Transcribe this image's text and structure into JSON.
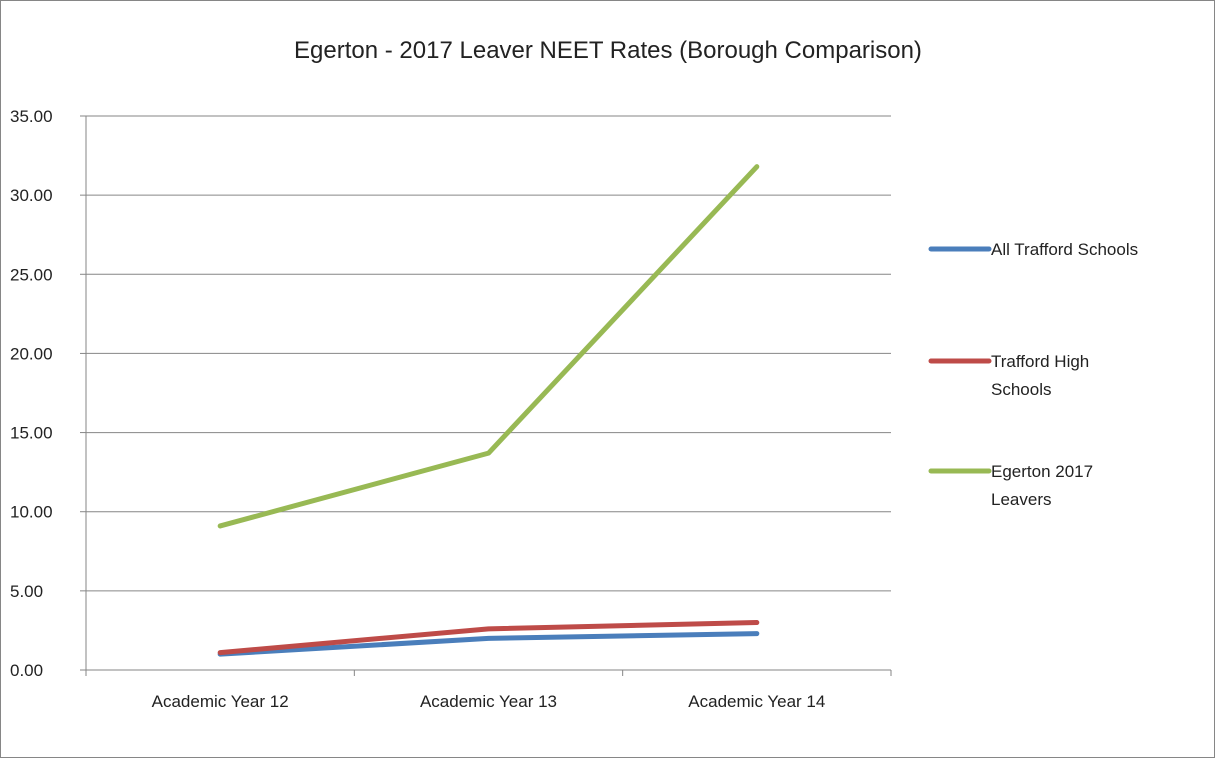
{
  "chart_data": {
    "type": "line",
    "title": "Egerton - 2017 Leaver NEET Rates (Borough Comparison)",
    "xlabel": "",
    "ylabel": "",
    "categories": [
      "Academic Year 12",
      "Academic Year 13",
      "Academic Year 14"
    ],
    "ylim": [
      0,
      35
    ],
    "yticks": [
      "0.00",
      "5.00",
      "10.00",
      "15.00",
      "20.00",
      "25.00",
      "30.00",
      "35.00"
    ],
    "grid": true,
    "legend_position": "right",
    "series": [
      {
        "name": "All Trafford Schools",
        "color": "#4a7ebb",
        "values": [
          1.0,
          2.0,
          2.3
        ]
      },
      {
        "name": "Trafford High Schools",
        "color": "#be4b48",
        "values": [
          1.1,
          2.6,
          3.0
        ]
      },
      {
        "name": "Egerton 2017 Leavers",
        "color": "#98b954",
        "values": [
          9.1,
          13.7,
          31.8
        ]
      }
    ]
  }
}
